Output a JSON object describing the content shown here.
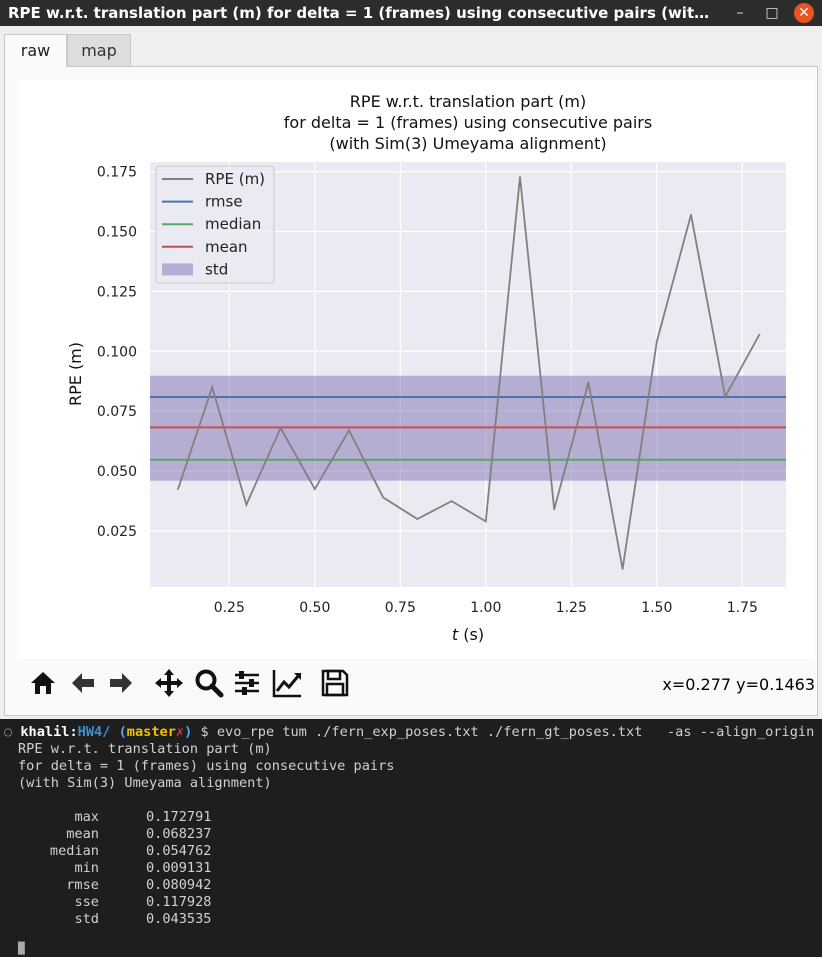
{
  "window": {
    "title": "RPE w.r.t. translation part (m) for delta = 1 (frames) using consecutive pairs (wit…",
    "minimize": "–",
    "maximize": "□",
    "close": "✕"
  },
  "tabs": [
    {
      "label": "raw",
      "active": true
    },
    {
      "label": "map",
      "active": false
    }
  ],
  "toolbar": {
    "icons": [
      "home-icon",
      "back-arrow-icon",
      "forward-arrow-icon",
      "pan-icon",
      "zoom-icon",
      "configure-subplots-icon",
      "edit-axis-icon",
      "save-icon"
    ],
    "coords": "x=0.277 y=0.1463"
  },
  "chart_data": {
    "type": "line",
    "title": "RPE w.r.t. translation part (m)\nfor delta = 1 (frames) using consecutive pairs\n(with Sim(3) Umeyama alignment)",
    "title_lines": [
      "RPE w.r.t. translation part (m)",
      "for delta = 1 (frames) using consecutive pairs",
      "(with Sim(3) Umeyama alignment)"
    ],
    "xlabel": "t (s)",
    "xlabel_var": "t",
    "xlabel_unit": " (s)",
    "ylabel": "RPE (m)",
    "xlim": [
      -0.06,
      1.88
    ],
    "ylim": [
      0.0,
      0.179
    ],
    "xticks": [
      0.25,
      0.5,
      0.75,
      1.0,
      1.25,
      1.5,
      1.75
    ],
    "xtick_labels": [
      "0.25",
      "0.50",
      "0.75",
      "1.00",
      "1.25",
      "1.50",
      "1.75"
    ],
    "yticks": [
      0.025,
      0.05,
      0.075,
      0.1,
      0.125,
      0.15,
      0.175
    ],
    "ytick_labels": [
      "0.025",
      "0.050",
      "0.075",
      "0.100",
      "0.125",
      "0.150",
      "0.175"
    ],
    "grid": true,
    "legend_position": "upper-left",
    "series": [
      {
        "name": "RPE (m)",
        "color": "#808080",
        "x": [
          0.1,
          0.2,
          0.3,
          0.4,
          0.5,
          0.6,
          0.7,
          0.8,
          0.9,
          1.0,
          1.1,
          1.2,
          1.3,
          1.4,
          1.5,
          1.6,
          1.7,
          1.8
        ],
        "y": [
          0.0425,
          0.085,
          0.036,
          0.068,
          0.0425,
          0.067,
          0.039,
          0.03,
          0.0375,
          0.029,
          0.172791,
          0.034,
          0.087,
          0.009131,
          0.104,
          0.157,
          0.081,
          0.107
        ]
      }
    ],
    "hlines": [
      {
        "name": "rmse",
        "value": 0.080942,
        "color": "#4c72b0"
      },
      {
        "name": "median",
        "value": 0.054762,
        "color": "#55a868"
      },
      {
        "name": "mean",
        "value": 0.068237,
        "color": "#c44e52"
      }
    ],
    "band": {
      "name": "std",
      "low": 0.046,
      "high": 0.0898,
      "color": "#8172b2"
    },
    "legend": [
      {
        "label": "RPE (m)",
        "kind": "line",
        "color": "#808080"
      },
      {
        "label": "rmse",
        "kind": "line",
        "color": "#4c72b0"
      },
      {
        "label": "median",
        "kind": "line",
        "color": "#55a868"
      },
      {
        "label": "mean",
        "kind": "line",
        "color": "#c44e52"
      },
      {
        "label": "std",
        "kind": "patch",
        "color": "#8172b2"
      }
    ]
  },
  "terminal": {
    "prompt_user": "khalil",
    "prompt_sep": ":",
    "prompt_dir": "HW4/",
    "prompt_branch_open": "(",
    "prompt_branch": "master",
    "prompt_dirty": "✗",
    "prompt_branch_close": ")",
    "prompt_dollar": "$",
    "command": "evo_rpe tum ./fern_exp_poses.txt ./fern_gt_poses.txt   -as --align_origin -p",
    "output_lines": [
      "RPE w.r.t. translation part (m)",
      "for delta = 1 (frames) using consecutive pairs",
      "(with Sim(3) Umeyama alignment)"
    ],
    "stats": [
      {
        "key": "max",
        "value": "0.172791"
      },
      {
        "key": "mean",
        "value": "0.068237"
      },
      {
        "key": "median",
        "value": "0.054762"
      },
      {
        "key": "min",
        "value": "0.009131"
      },
      {
        "key": "rmse",
        "value": "0.080942"
      },
      {
        "key": "sse",
        "value": "0.117928"
      },
      {
        "key": "std",
        "value": "0.043535"
      }
    ],
    "cursor": "█"
  },
  "colors": {
    "plot_bg": "#eaeaf2",
    "grid": "#ffffff",
    "terminal_bg": "#1e1e1e",
    "prompt_user": "#ffffff",
    "prompt_dir": "#3d8fd1",
    "prompt_branch": "#f0c000",
    "prompt_dirty": "#e03030"
  }
}
